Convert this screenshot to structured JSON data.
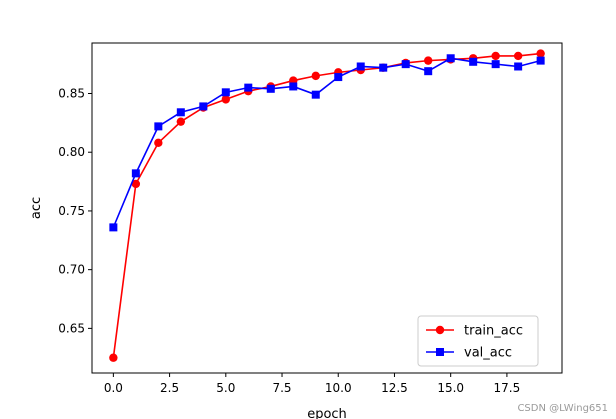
{
  "chart_data": {
    "type": "line",
    "title": "",
    "xlabel": "epoch",
    "ylabel": "acc",
    "xlim": [
      -0.95,
      19.95
    ],
    "ylim": [
      0.612,
      0.893
    ],
    "xticks": [
      0,
      2.5,
      5,
      7.5,
      10,
      12.5,
      15,
      17.5
    ],
    "xtick_labels": [
      "0.0",
      "2.5",
      "5.0",
      "7.5",
      "10.0",
      "12.5",
      "15.0",
      "17.5"
    ],
    "yticks": [
      0.65,
      0.7,
      0.75,
      0.8,
      0.85
    ],
    "ytick_labels": [
      "0.65",
      "0.70",
      "0.75",
      "0.80",
      "0.85"
    ],
    "grid": false,
    "legend_position": "lower-right",
    "x": [
      0,
      1,
      2,
      3,
      4,
      5,
      6,
      7,
      8,
      9,
      10,
      11,
      12,
      13,
      14,
      15,
      16,
      17,
      18,
      19
    ],
    "series": [
      {
        "name": "train_acc",
        "color": "#ff0000",
        "marker": "circle",
        "values": [
          0.625,
          0.773,
          0.808,
          0.826,
          0.838,
          0.845,
          0.852,
          0.856,
          0.861,
          0.865,
          0.868,
          0.87,
          0.872,
          0.876,
          0.878,
          0.879,
          0.88,
          0.882,
          0.882,
          0.884
        ]
      },
      {
        "name": "val_acc",
        "color": "#0000ff",
        "marker": "square",
        "values": [
          0.736,
          0.782,
          0.822,
          0.834,
          0.839,
          0.851,
          0.855,
          0.854,
          0.856,
          0.849,
          0.864,
          0.873,
          0.872,
          0.875,
          0.869,
          0.88,
          0.877,
          0.875,
          0.873,
          0.878
        ]
      }
    ]
  },
  "watermark": "CSDN @LWing651"
}
